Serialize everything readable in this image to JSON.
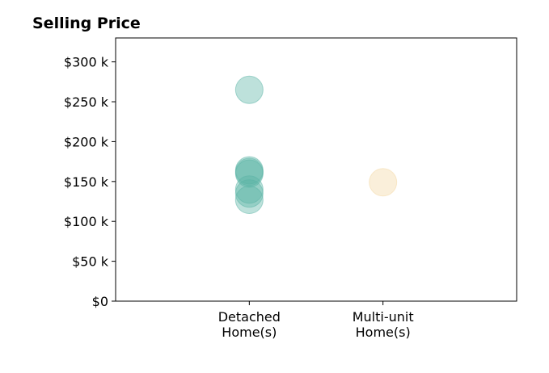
{
  "chart_data": {
    "type": "scatter",
    "title": "Selling Price",
    "xlabel": "",
    "ylabel": "",
    "categories": [
      "Detached\nHome(s)",
      "Multi-unit\nHome(s)"
    ],
    "xlim": [
      -1,
      2
    ],
    "ylim": [
      0,
      330
    ],
    "yticks": [
      0,
      50,
      100,
      150,
      200,
      250,
      300
    ],
    "ytick_labels": [
      "$0",
      "$50 k",
      "$100 k",
      "$150 k",
      "$200 k",
      "$250 k",
      "$300 k"
    ],
    "grid": false,
    "legend": "none",
    "series": [
      {
        "category": "Detached\nHome(s)",
        "color": "#5ab4a5",
        "values": [
          265,
          164,
          160,
          162,
          140,
          135,
          127
        ]
      },
      {
        "category": "Multi-unit\nHome(s)",
        "color": "#f3d8a2",
        "values": [
          149
        ]
      }
    ]
  }
}
